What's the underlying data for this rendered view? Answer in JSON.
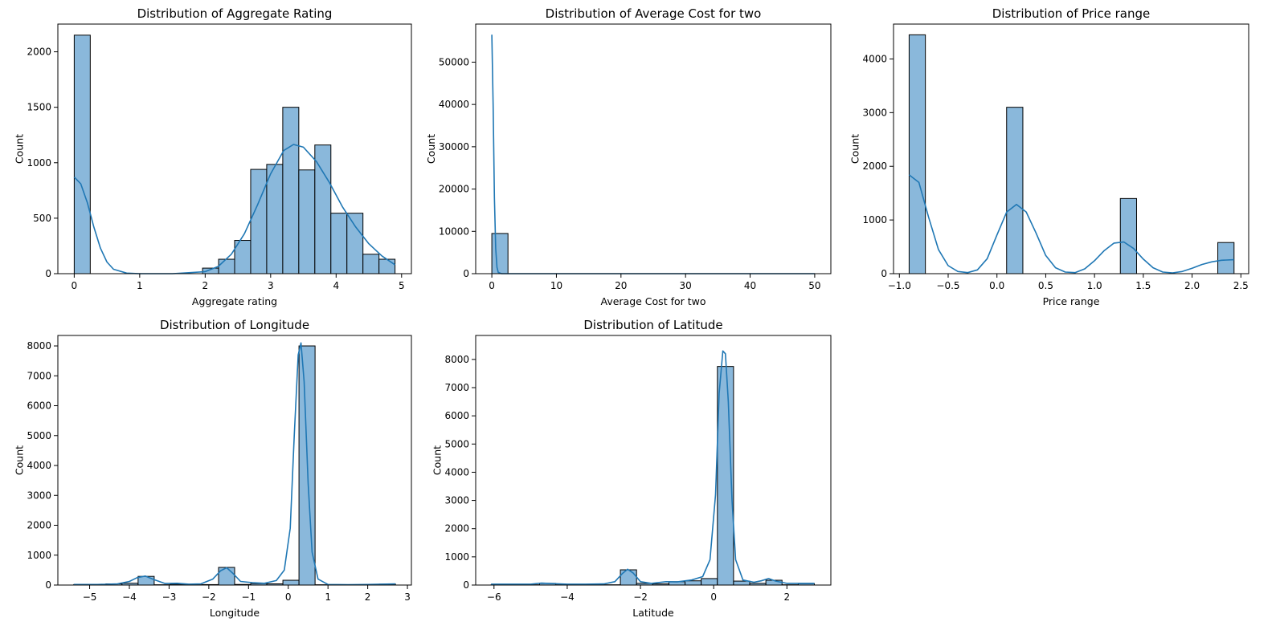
{
  "figure": {
    "background": "#ffffff",
    "bar_fill": "#8ab8db",
    "bar_edge": "#000000",
    "kde_color": "#1f77b4"
  },
  "chart_data": [
    {
      "type": "bar",
      "title": "Distribution of Aggregate Rating",
      "xlabel": "Aggregate rating",
      "ylabel": "Count",
      "xlim": [
        -0.25,
        5.15
      ],
      "ylim": [
        0,
        2250
      ],
      "xticks": [
        0,
        1,
        2,
        3,
        4,
        5
      ],
      "xtick_labels": [
        "0",
        "1",
        "2",
        "3",
        "4",
        "5"
      ],
      "yticks": [
        0,
        500,
        1000,
        1500,
        2000
      ],
      "ytick_labels": [
        "0",
        "500",
        "1000",
        "1500",
        "2000"
      ],
      "bin_edges": [
        -0.0,
        0.245,
        0.49,
        0.735,
        0.98,
        1.225,
        1.47,
        1.715,
        1.96,
        2.205,
        2.45,
        2.695,
        2.94,
        3.185,
        3.43,
        3.675,
        3.92,
        4.165,
        4.41,
        4.655,
        4.9
      ],
      "counts": [
        2150,
        0,
        0,
        0,
        0,
        0,
        0,
        0,
        50,
        130,
        300,
        940,
        985,
        1500,
        935,
        1160,
        545,
        545,
        175,
        130
      ],
      "kde": {
        "x": [
          0,
          0.1,
          0.2,
          0.3,
          0.4,
          0.5,
          0.6,
          0.8,
          1.0,
          1.5,
          2.0,
          2.2,
          2.4,
          2.6,
          2.8,
          3.0,
          3.2,
          3.35,
          3.5,
          3.7,
          3.9,
          4.1,
          4.3,
          4.5,
          4.7,
          4.9
        ],
        "y": [
          870,
          810,
          640,
          420,
          230,
          105,
          40,
          5,
          0,
          0,
          18,
          65,
          175,
          360,
          620,
          900,
          1110,
          1165,
          1140,
          1010,
          820,
          600,
          420,
          270,
          160,
          80
        ]
      }
    },
    {
      "type": "bar",
      "title": "Distribution of Average Cost for two",
      "xlabel": "Average Cost for two",
      "ylabel": "Count",
      "xlim": [
        -2.5,
        52.5
      ],
      "ylim": [
        0,
        59000
      ],
      "xticks": [
        0,
        10,
        20,
        30,
        40,
        50
      ],
      "xtick_labels": [
        "0",
        "10",
        "20",
        "30",
        "40",
        "50"
      ],
      "yticks": [
        0,
        10000,
        20000,
        30000,
        40000,
        50000
      ],
      "ytick_labels": [
        "0",
        "10000",
        "20000",
        "30000",
        "40000",
        "50000"
      ],
      "bin_edges": [
        -0.0,
        2.5,
        5.0,
        7.5,
        10.0,
        12.5,
        15.0,
        17.5,
        20.0,
        22.5,
        25.0,
        27.5,
        30.0,
        32.5,
        35.0,
        37.5,
        40.0,
        42.5,
        45.0,
        47.5,
        50.0
      ],
      "counts": [
        9500,
        0,
        0,
        0,
        0,
        0,
        0,
        0,
        0,
        0,
        0,
        0,
        0,
        0,
        0,
        0,
        0,
        0,
        0,
        0
      ],
      "kde": {
        "x": [
          0,
          0.2,
          0.4,
          0.6,
          0.8,
          1.0,
          1.5,
          2.0,
          5,
          10,
          20,
          30,
          40,
          50
        ],
        "y": [
          56500,
          40000,
          18000,
          6000,
          1500,
          300,
          0,
          0,
          0,
          0,
          0,
          0,
          0,
          0
        ]
      }
    },
    {
      "type": "bar",
      "title": "Distribution of Price range",
      "xlabel": "Price range",
      "ylabel": "Count",
      "xlim": [
        -1.06,
        2.58
      ],
      "ylim": [
        0,
        4650
      ],
      "xticks": [
        -1.0,
        -0.5,
        0.0,
        0.5,
        1.0,
        1.5,
        2.0,
        2.5
      ],
      "xtick_labels": [
        "−1.0",
        "−0.5",
        "0.0",
        "0.5",
        "1.0",
        "1.5",
        "2.0",
        "2.5"
      ],
      "yticks": [
        0,
        1000,
        2000,
        3000,
        4000
      ],
      "ytick_labels": [
        "0",
        "1000",
        "2000",
        "3000",
        "4000"
      ],
      "bin_edges": [
        -0.9,
        -0.7335,
        -0.567,
        -0.4005,
        -0.234,
        -0.0675,
        0.099,
        0.2655,
        0.432,
        0.5985,
        0.765,
        0.9315,
        1.098,
        1.2645,
        1.431,
        1.5975,
        1.764,
        1.9305,
        2.097,
        2.2635,
        2.43
      ],
      "counts": [
        4450,
        0,
        0,
        0,
        0,
        0,
        3100,
        0,
        0,
        0,
        0,
        0,
        0,
        1400,
        0,
        0,
        0,
        0,
        0,
        580
      ],
      "kde": {
        "x": [
          -0.9,
          -0.8,
          -0.7,
          -0.6,
          -0.5,
          -0.4,
          -0.3,
          -0.2,
          -0.1,
          0.0,
          0.1,
          0.2,
          0.3,
          0.4,
          0.5,
          0.6,
          0.7,
          0.8,
          0.9,
          1.0,
          1.1,
          1.2,
          1.3,
          1.4,
          1.5,
          1.6,
          1.7,
          1.8,
          1.9,
          2.0,
          2.1,
          2.2,
          2.3,
          2.43
        ],
        "y": [
          1840,
          1700,
          1050,
          450,
          150,
          40,
          20,
          70,
          280,
          720,
          1150,
          1290,
          1150,
          760,
          340,
          110,
          30,
          20,
          90,
          240,
          430,
          570,
          590,
          470,
          270,
          110,
          30,
          15,
          40,
          100,
          170,
          220,
          250,
          260
        ]
      }
    },
    {
      "type": "bar",
      "title": "Distribution of Longitude",
      "xlabel": "Longitude",
      "ylabel": "Count",
      "xlim": [
        -5.8,
        3.1
      ],
      "ylim": [
        0,
        8350
      ],
      "xticks": [
        -5,
        -4,
        -3,
        -2,
        -1,
        0,
        1,
        2,
        3
      ],
      "xtick_labels": [
        "−5",
        "−4",
        "−3",
        "−2",
        "−1",
        "0",
        "1",
        "2",
        "3"
      ],
      "yticks": [
        0,
        1000,
        2000,
        3000,
        4000,
        5000,
        6000,
        7000,
        8000
      ],
      "ytick_labels": [
        "0",
        "1000",
        "2000",
        "3000",
        "4000",
        "5000",
        "6000",
        "7000",
        "8000"
      ],
      "bin_edges": [
        -5.4,
        -4.995,
        -4.59,
        -4.185,
        -3.78,
        -3.375,
        -2.97,
        -2.565,
        -2.16,
        -1.755,
        -1.35,
        -0.945,
        -0.54,
        -0.135,
        0.27,
        0.675,
        1.08,
        1.485,
        1.89,
        2.295,
        2.7
      ],
      "counts": [
        15,
        5,
        40,
        60,
        290,
        10,
        30,
        10,
        15,
        590,
        20,
        50,
        40,
        160,
        8000,
        10,
        5,
        5,
        10,
        30
      ],
      "kde": {
        "x": [
          -5.4,
          -4.8,
          -4.3,
          -4.0,
          -3.8,
          -3.6,
          -3.4,
          -3.1,
          -2.8,
          -2.5,
          -2.2,
          -1.9,
          -1.7,
          -1.55,
          -1.4,
          -1.2,
          -0.9,
          -0.6,
          -0.3,
          -0.1,
          0.05,
          0.15,
          0.25,
          0.32,
          0.4,
          0.5,
          0.6,
          0.75,
          1.0,
          1.5,
          2.0,
          2.7
        ],
        "y": [
          20,
          20,
          40,
          120,
          250,
          300,
          190,
          50,
          60,
          30,
          40,
          200,
          480,
          580,
          400,
          120,
          80,
          60,
          150,
          500,
          1900,
          5000,
          7700,
          8100,
          6800,
          3400,
          1100,
          200,
          20,
          10,
          20,
          40
        ]
      }
    },
    {
      "type": "bar",
      "title": "Distribution of Latitude",
      "xlabel": "Latitude",
      "ylabel": "Count",
      "xlim": [
        -6.5,
        3.2
      ],
      "ylim": [
        0,
        8850
      ],
      "xticks": [
        -6,
        -4,
        -2,
        0,
        2
      ],
      "xtick_labels": [
        "−6",
        "−4",
        "−2",
        "0",
        "2"
      ],
      "yticks": [
        0,
        1000,
        2000,
        3000,
        4000,
        5000,
        6000,
        7000,
        8000
      ],
      "ytick_labels": [
        "0",
        "1000",
        "2000",
        "3000",
        "4000",
        "5000",
        "6000",
        "7000",
        "8000"
      ],
      "bin_edges": [
        -6.08,
        -5.6385,
        -5.197,
        -4.7555,
        -4.314,
        -3.8725,
        -3.431,
        -2.9895,
        -2.548,
        -2.1065,
        -1.665,
        -1.2235,
        -0.782,
        -0.3405,
        0.101,
        0.5425,
        0.984,
        1.4255,
        1.867,
        2.3085,
        2.75
      ],
      "counts": [
        10,
        20,
        10,
        60,
        10,
        15,
        10,
        10,
        540,
        60,
        40,
        120,
        150,
        230,
        7750,
        140,
        60,
        170,
        10,
        50
      ],
      "kde": {
        "x": [
          -6.08,
          -5.5,
          -5.0,
          -4.7,
          -4.4,
          -4.0,
          -3.5,
          -3.0,
          -2.7,
          -2.5,
          -2.35,
          -2.2,
          -2.0,
          -1.7,
          -1.3,
          -1.0,
          -0.6,
          -0.3,
          -0.1,
          0.05,
          0.15,
          0.25,
          0.32,
          0.4,
          0.5,
          0.6,
          0.8,
          1.1,
          1.3,
          1.5,
          1.7,
          2.0,
          2.4,
          2.75
        ],
        "y": [
          30,
          30,
          30,
          70,
          50,
          30,
          30,
          40,
          120,
          400,
          560,
          430,
          120,
          60,
          120,
          110,
          180,
          300,
          900,
          3200,
          6800,
          8300,
          8200,
          6500,
          3000,
          900,
          180,
          100,
          150,
          230,
          140,
          60,
          60,
          60
        ]
      }
    }
  ]
}
